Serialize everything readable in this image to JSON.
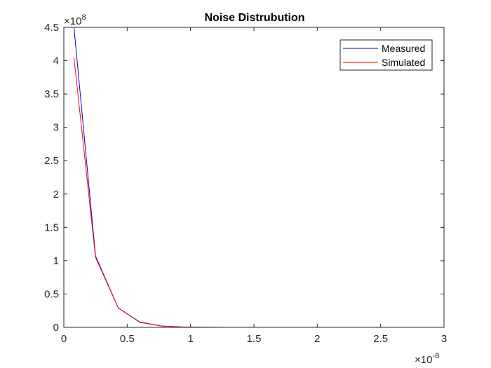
{
  "chart_data": {
    "type": "line",
    "title": "Noise Distrubution",
    "xlabel": "",
    "ylabel": "",
    "xlim": [
      0,
      3e-08
    ],
    "ylim": [
      0,
      450000000
    ],
    "x_tick_values": [
      0,
      5e-09,
      1e-08,
      1.5e-08,
      2e-08,
      2.5e-08,
      3e-08
    ],
    "x_tick_labels": [
      "0",
      "0.5",
      "1",
      "1.5",
      "2",
      "2.5",
      "3"
    ],
    "x_exponent": {
      "base": "×10",
      "power": "-8"
    },
    "y_tick_values": [
      0,
      50000000,
      100000000,
      150000000,
      200000000,
      250000000,
      300000000,
      350000000,
      400000000,
      450000000
    ],
    "y_tick_labels": [
      "0",
      "0.5",
      "1",
      "1.5",
      "2",
      "2.5",
      "3",
      "3.5",
      "4",
      "4.5"
    ],
    "y_exponent": {
      "base": "×10",
      "power": "8"
    },
    "grid": false,
    "legend_position": "top-right",
    "series": [
      {
        "name": "Measured",
        "color": "#0000cc",
        "x": [
          8e-10,
          2.5e-09,
          4.3e-09,
          6e-09,
          7.7e-09,
          9.4e-09,
          1.1e-08,
          1.3e-08,
          1.5e-08,
          1.8e-08,
          2.1e-08,
          2.4e-08,
          2.62e-08
        ],
        "values": [
          450000000,
          107000000,
          29000000,
          8000000,
          2000000,
          500000,
          150000,
          50000,
          10000,
          0,
          0,
          0,
          0
        ]
      },
      {
        "name": "Simulated",
        "color": "#ff0000",
        "x": [
          8e-10,
          2.5e-09,
          4.3e-09,
          6e-09,
          7.7e-09,
          9.4e-09,
          1.1e-08,
          1.3e-08,
          1.5e-08,
          1.8e-08,
          2.1e-08,
          2.4e-08,
          2.62e-08
        ],
        "values": [
          405000000,
          105000000,
          29000000,
          7500000,
          2000000,
          500000,
          150000,
          50000,
          10000,
          0,
          0,
          0,
          0
        ]
      }
    ]
  }
}
